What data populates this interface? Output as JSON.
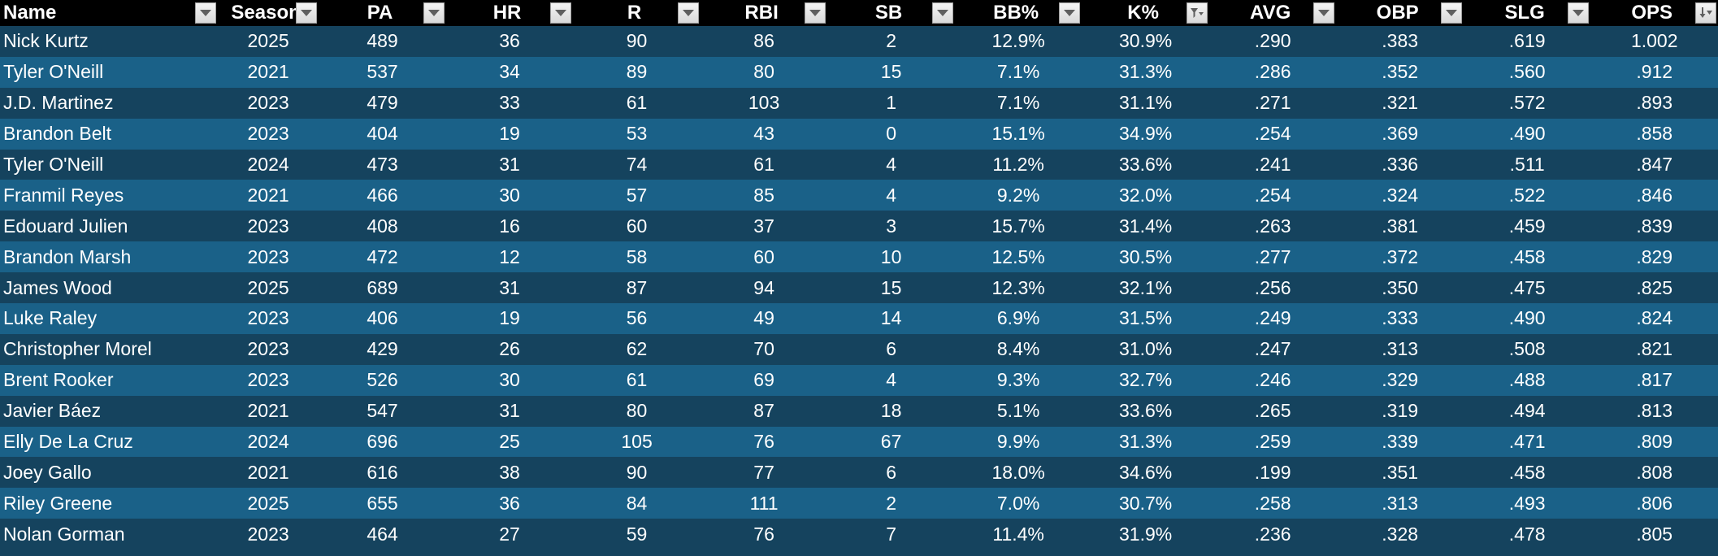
{
  "columns": [
    {
      "key": "name",
      "label": "Name",
      "filter_icon": "dropdown-arrow-icon"
    },
    {
      "key": "season",
      "label": "Season",
      "filter_icon": "dropdown-arrow-icon"
    },
    {
      "key": "pa",
      "label": "PA",
      "filter_icon": "dropdown-arrow-icon"
    },
    {
      "key": "hr",
      "label": "HR",
      "filter_icon": "dropdown-arrow-icon"
    },
    {
      "key": "r",
      "label": "R",
      "filter_icon": "dropdown-arrow-icon"
    },
    {
      "key": "rbi",
      "label": "RBI",
      "filter_icon": "dropdown-arrow-icon"
    },
    {
      "key": "sb",
      "label": "SB",
      "filter_icon": "dropdown-arrow-icon"
    },
    {
      "key": "bb_pct",
      "label": "BB%",
      "filter_icon": "dropdown-arrow-icon"
    },
    {
      "key": "k_pct",
      "label": "K%",
      "filter_icon": "filter-active-icon"
    },
    {
      "key": "avg",
      "label": "AVG",
      "filter_icon": "dropdown-arrow-icon"
    },
    {
      "key": "obp",
      "label": "OBP",
      "filter_icon": "dropdown-arrow-icon"
    },
    {
      "key": "slg",
      "label": "SLG",
      "filter_icon": "dropdown-arrow-icon"
    },
    {
      "key": "ops",
      "label": "OPS",
      "filter_icon": "sort-descending-icon"
    }
  ],
  "rows": [
    [
      "Nick Kurtz",
      "2025",
      "489",
      "36",
      "90",
      "86",
      "2",
      "12.9%",
      "30.9%",
      ".290",
      ".383",
      ".619",
      "1.002"
    ],
    [
      "Tyler O'Neill",
      "2021",
      "537",
      "34",
      "89",
      "80",
      "15",
      "7.1%",
      "31.3%",
      ".286",
      ".352",
      ".560",
      ".912"
    ],
    [
      "J.D. Martinez",
      "2023",
      "479",
      "33",
      "61",
      "103",
      "1",
      "7.1%",
      "31.1%",
      ".271",
      ".321",
      ".572",
      ".893"
    ],
    [
      "Brandon Belt",
      "2023",
      "404",
      "19",
      "53",
      "43",
      "0",
      "15.1%",
      "34.9%",
      ".254",
      ".369",
      ".490",
      ".858"
    ],
    [
      "Tyler O'Neill",
      "2024",
      "473",
      "31",
      "74",
      "61",
      "4",
      "11.2%",
      "33.6%",
      ".241",
      ".336",
      ".511",
      ".847"
    ],
    [
      "Franmil Reyes",
      "2021",
      "466",
      "30",
      "57",
      "85",
      "4",
      "9.2%",
      "32.0%",
      ".254",
      ".324",
      ".522",
      ".846"
    ],
    [
      "Edouard Julien",
      "2023",
      "408",
      "16",
      "60",
      "37",
      "3",
      "15.7%",
      "31.4%",
      ".263",
      ".381",
      ".459",
      ".839"
    ],
    [
      "Brandon Marsh",
      "2023",
      "472",
      "12",
      "58",
      "60",
      "10",
      "12.5%",
      "30.5%",
      ".277",
      ".372",
      ".458",
      ".829"
    ],
    [
      "James Wood",
      "2025",
      "689",
      "31",
      "87",
      "94",
      "15",
      "12.3%",
      "32.1%",
      ".256",
      ".350",
      ".475",
      ".825"
    ],
    [
      "Luke Raley",
      "2023",
      "406",
      "19",
      "56",
      "49",
      "14",
      "6.9%",
      "31.5%",
      ".249",
      ".333",
      ".490",
      ".824"
    ],
    [
      "Christopher Morel",
      "2023",
      "429",
      "26",
      "62",
      "70",
      "6",
      "8.4%",
      "31.0%",
      ".247",
      ".313",
      ".508",
      ".821"
    ],
    [
      "Brent Rooker",
      "2023",
      "526",
      "30",
      "61",
      "69",
      "4",
      "9.3%",
      "32.7%",
      ".246",
      ".329",
      ".488",
      ".817"
    ],
    [
      "Javier Báez",
      "2021",
      "547",
      "31",
      "80",
      "87",
      "18",
      "5.1%",
      "33.6%",
      ".265",
      ".319",
      ".494",
      ".813"
    ],
    [
      "Elly De La Cruz",
      "2024",
      "696",
      "25",
      "105",
      "76",
      "67",
      "9.9%",
      "31.3%",
      ".259",
      ".339",
      ".471",
      ".809"
    ],
    [
      "Joey Gallo",
      "2021",
      "616",
      "38",
      "90",
      "77",
      "6",
      "18.0%",
      "34.6%",
      ".199",
      ".351",
      ".458",
      ".808"
    ],
    [
      "Riley Greene",
      "2025",
      "655",
      "36",
      "84",
      "111",
      "2",
      "7.0%",
      "30.7%",
      ".258",
      ".313",
      ".493",
      ".806"
    ],
    [
      "Nolan Gorman",
      "2023",
      "464",
      "27",
      "59",
      "76",
      "7",
      "11.4%",
      "31.9%",
      ".236",
      ".328",
      ".478",
      ".805"
    ]
  ],
  "colors": {
    "header_bg": "#000000",
    "row_dark": "#15435e",
    "row_light": "#1a6188",
    "text": "#ffffff"
  }
}
